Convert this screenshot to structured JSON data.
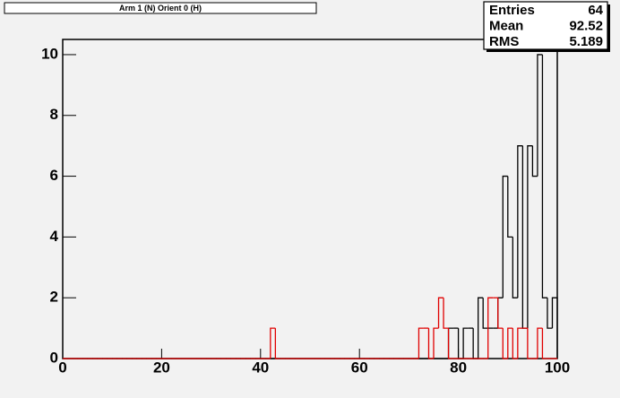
{
  "chart_data": {
    "type": "histogram",
    "title": "Arm 1 (N) Orient 0 (H)",
    "stats": [
      {
        "label": "Entries",
        "value": 64
      },
      {
        "label": "Mean",
        "value": 92.52
      },
      {
        "label": "RMS",
        "value": 5.189
      }
    ],
    "bins": [
      0,
      1,
      2,
      3,
      4,
      5,
      6,
      7,
      8,
      9,
      10,
      11,
      12,
      13,
      14,
      15,
      16,
      17,
      18,
      19,
      20,
      21,
      22,
      23,
      24,
      25,
      26,
      27,
      28,
      29,
      30,
      31,
      32,
      33,
      34,
      35,
      36,
      37,
      38,
      39,
      40,
      41,
      42,
      43,
      44,
      45,
      46,
      47,
      48,
      49,
      50,
      51,
      52,
      53,
      54,
      55,
      56,
      57,
      58,
      59,
      60,
      61,
      62,
      63,
      64,
      65,
      66,
      67,
      68,
      69,
      70,
      71,
      72,
      73,
      74,
      75,
      76,
      77,
      78,
      79,
      80,
      81,
      82,
      83,
      84,
      85,
      86,
      87,
      88,
      89,
      90,
      91,
      92,
      93,
      94,
      95,
      96,
      97,
      98,
      99,
      100
    ],
    "series": [
      {
        "color": "#000000",
        "values": [
          0,
          0,
          0,
          0,
          0,
          0,
          0,
          0,
          0,
          0,
          0,
          0,
          0,
          0,
          0,
          0,
          0,
          0,
          0,
          0,
          0,
          0,
          0,
          0,
          0,
          0,
          0,
          0,
          0,
          0,
          0,
          0,
          0,
          0,
          0,
          0,
          0,
          0,
          0,
          0,
          0,
          0,
          0,
          0,
          0,
          0,
          0,
          0,
          0,
          0,
          0,
          0,
          0,
          0,
          0,
          0,
          0,
          0,
          0,
          0,
          0,
          0,
          0,
          0,
          0,
          0,
          0,
          0,
          0,
          0,
          0,
          0,
          0,
          0,
          0,
          0,
          0,
          0,
          1,
          1,
          0,
          1,
          1,
          0,
          2,
          1,
          1,
          1,
          2,
          6,
          4,
          2,
          7,
          1,
          7,
          6,
          10,
          2,
          1,
          2
        ]
      },
      {
        "color": "#e00000",
        "values": [
          0,
          0,
          0,
          0,
          0,
          0,
          0,
          0,
          0,
          0,
          0,
          0,
          0,
          0,
          0,
          0,
          0,
          0,
          0,
          0,
          0,
          0,
          0,
          0,
          0,
          0,
          0,
          0,
          0,
          0,
          0,
          0,
          0,
          0,
          0,
          0,
          0,
          0,
          0,
          0,
          0,
          0,
          1,
          0,
          0,
          0,
          0,
          0,
          0,
          0,
          0,
          0,
          0,
          0,
          0,
          0,
          0,
          0,
          0,
          0,
          0,
          0,
          0,
          0,
          0,
          0,
          0,
          0,
          0,
          0,
          0,
          0,
          1,
          1,
          0,
          1,
          2,
          1,
          0,
          0,
          0,
          0,
          0,
          0,
          0,
          0,
          2,
          2,
          1,
          0,
          1,
          0,
          1,
          1,
          0,
          0,
          1,
          0,
          0,
          0
        ]
      }
    ],
    "xlim": [
      0,
      100
    ],
    "xticks": [
      0,
      20,
      40,
      60,
      80,
      100
    ],
    "ylim": [
      0,
      10.5
    ],
    "yticks": [
      0,
      2,
      4,
      6,
      8,
      10
    ]
  }
}
